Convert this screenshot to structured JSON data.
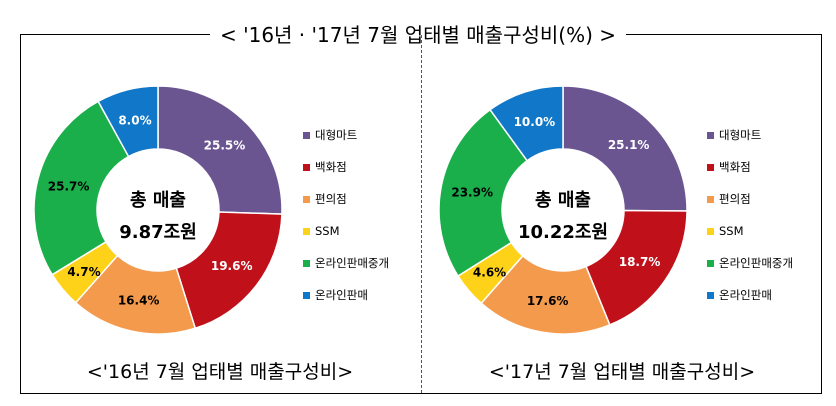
{
  "main_title": "< '16년 · '17년 7월  업태별  매출구성비(%) >",
  "colors": {
    "large_mart": "#6a5591",
    "department_store": "#c0101a",
    "convenience_store": "#f49a4c",
    "ssm": "#ffd21a",
    "online_brokerage": "#1aaf4a",
    "online_sales": "#1177c8"
  },
  "chart_data": [
    {
      "type": "pie",
      "subtitle": "<'16년 7월  업태별  매출구성비>",
      "center_line1": "총 매출",
      "center_line2": "9.87조원",
      "legend_placement": "right",
      "categories": [
        "대형마트",
        "백화점",
        "편의점",
        "SSM",
        "온라인판매중개",
        "온라인판매"
      ],
      "values": [
        25.5,
        19.6,
        16.4,
        4.7,
        25.7,
        8.0
      ],
      "labels": [
        "25.5%",
        "19.6%",
        "16.4%",
        "4.7%",
        "25.7%",
        "8.0%"
      ]
    },
    {
      "type": "pie",
      "subtitle": "<'17년 7월  업태별  매출구성비>",
      "center_line1": "총 매출",
      "center_line2": "10.22조원",
      "legend_placement": "right",
      "categories": [
        "대형마트",
        "백화점",
        "편의점",
        "SSM",
        "온라인판매중개",
        "온라인판매"
      ],
      "values": [
        25.1,
        18.7,
        17.6,
        4.6,
        23.9,
        10.0
      ],
      "labels": [
        "25.1%",
        "18.7%",
        "17.6%",
        "4.6%",
        "23.9%",
        "10.0%"
      ]
    }
  ]
}
